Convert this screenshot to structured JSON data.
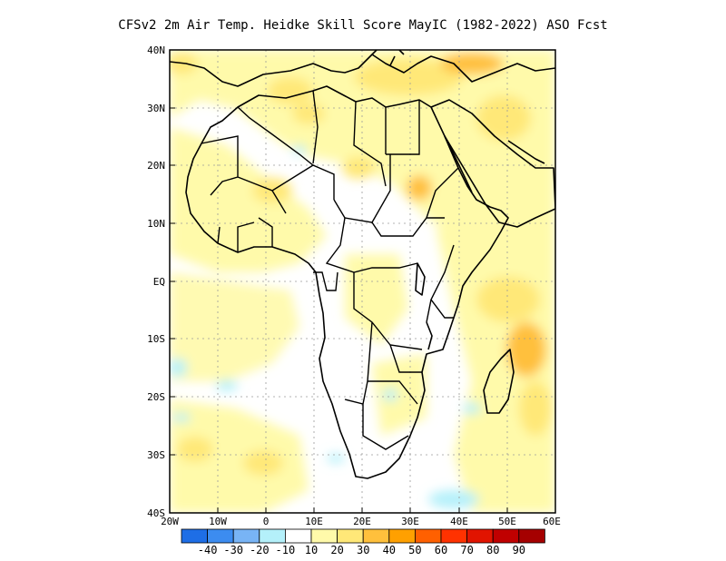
{
  "title": "CFSv2 2m Air Temp. Heidke Skill Score MayIC (1982-2022) ASO Fcst",
  "lat_labels": [
    "40N",
    "30N",
    "20N",
    "10N",
    "EQ",
    "10S",
    "20S",
    "30S",
    "40S"
  ],
  "lon_labels": [
    "20W",
    "10W",
    "0",
    "10E",
    "20E",
    "30E",
    "40E",
    "50E",
    "60E"
  ],
  "colorbar": {
    "labels": [
      "-40",
      "-30",
      "-20",
      "-10",
      "10",
      "20",
      "30",
      "40",
      "50",
      "60",
      "70",
      "80",
      "90"
    ],
    "colors": [
      "#1e6ee6",
      "#3c8cf0",
      "#78b4f5",
      "#b4f0fa",
      "#ffffff",
      "#fffaaa",
      "#ffe878",
      "#ffc03c",
      "#ffa000",
      "#ff6000",
      "#ff3200",
      "#e11400",
      "#c00000",
      "#a50000"
    ]
  },
  "map": {
    "lat_range": [
      -40,
      40
    ],
    "lon_range": [
      -20,
      60
    ],
    "field": "Heidke Skill Score"
  }
}
